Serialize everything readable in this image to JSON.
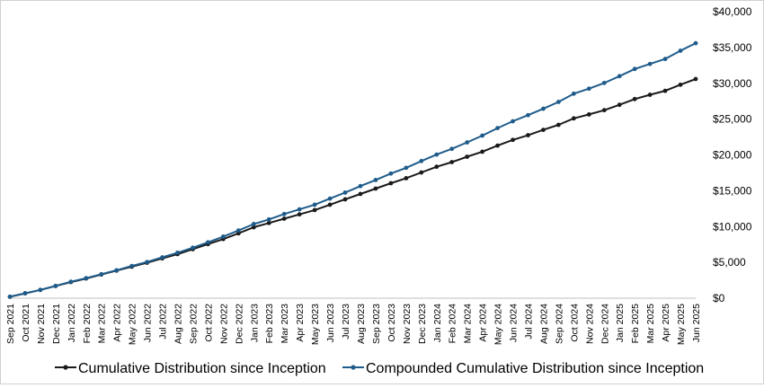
{
  "chart_data": {
    "type": "line",
    "title": "",
    "xlabel": "",
    "ylabel": "",
    "y_axis_side": "right",
    "ylim": [
      0,
      40000
    ],
    "yticks": [
      "$0",
      "$5,000",
      "$10,000",
      "$15,000",
      "$20,000",
      "$25,000",
      "$30,000",
      "$35,000",
      "$40,000"
    ],
    "grid": false,
    "legend_position": "bottom",
    "categories": [
      "Sep 2021",
      "Oct 2021",
      "Nov 2021",
      "Dec 2021",
      "Jan 2022",
      "Feb 2022",
      "Mar 2022",
      "Apr 2022",
      "May 2022",
      "Jun 2022",
      "Jul 2022",
      "Aug 2022",
      "Sep 2022",
      "Oct 2022",
      "Nov 2022",
      "Dec 2022",
      "Jan 2023",
      "Feb 2023",
      "Mar 2023",
      "Apr 2023",
      "May 2023",
      "Jun 2023",
      "Jul 2023",
      "Aug 2023",
      "Sep 2023",
      "Oct 2023",
      "Nov 2023",
      "Dec 2023",
      "Jan 2024",
      "Feb 2024",
      "Mar 2024",
      "Apr 2024",
      "May 2024",
      "Jun 2024",
      "Jul 2024",
      "Aug 2024",
      "Sep 2024",
      "Oct 2024",
      "Nov 2024",
      "Dec 2024",
      "Jan 2025",
      "Feb 2025",
      "Mar 2025",
      "Apr 2025",
      "May 2025",
      "Jun 2025"
    ],
    "series": [
      {
        "name": "Cumulative Distribution since Inception",
        "color": "#1a1a1a",
        "values": [
          200,
          680,
          1150,
          1700,
          2250,
          2750,
          3300,
          3850,
          4400,
          4950,
          5550,
          6150,
          6850,
          7550,
          8250,
          9050,
          9900,
          10500,
          11100,
          11700,
          12300,
          13050,
          13800,
          14550,
          15300,
          16050,
          16750,
          17550,
          18350,
          19000,
          19750,
          20450,
          21300,
          22100,
          22750,
          23500,
          24200,
          25100,
          25650,
          26250,
          27000,
          27800,
          28400,
          28950,
          29800,
          30600
        ]
      },
      {
        "name": "Compounded Cumulative Distribution since Inception",
        "color": "#1f5c8b",
        "values": [
          200,
          680,
          1150,
          1700,
          2300,
          2800,
          3350,
          3900,
          4500,
          5050,
          5700,
          6350,
          7050,
          7800,
          8600,
          9450,
          10350,
          11000,
          11750,
          12400,
          13050,
          13900,
          14750,
          15650,
          16500,
          17400,
          18200,
          19150,
          20050,
          20850,
          21750,
          22700,
          23750,
          24700,
          25550,
          26450,
          27400,
          28550,
          29250,
          30050,
          31000,
          32000,
          32700,
          33400,
          34550,
          35600
        ]
      }
    ]
  }
}
